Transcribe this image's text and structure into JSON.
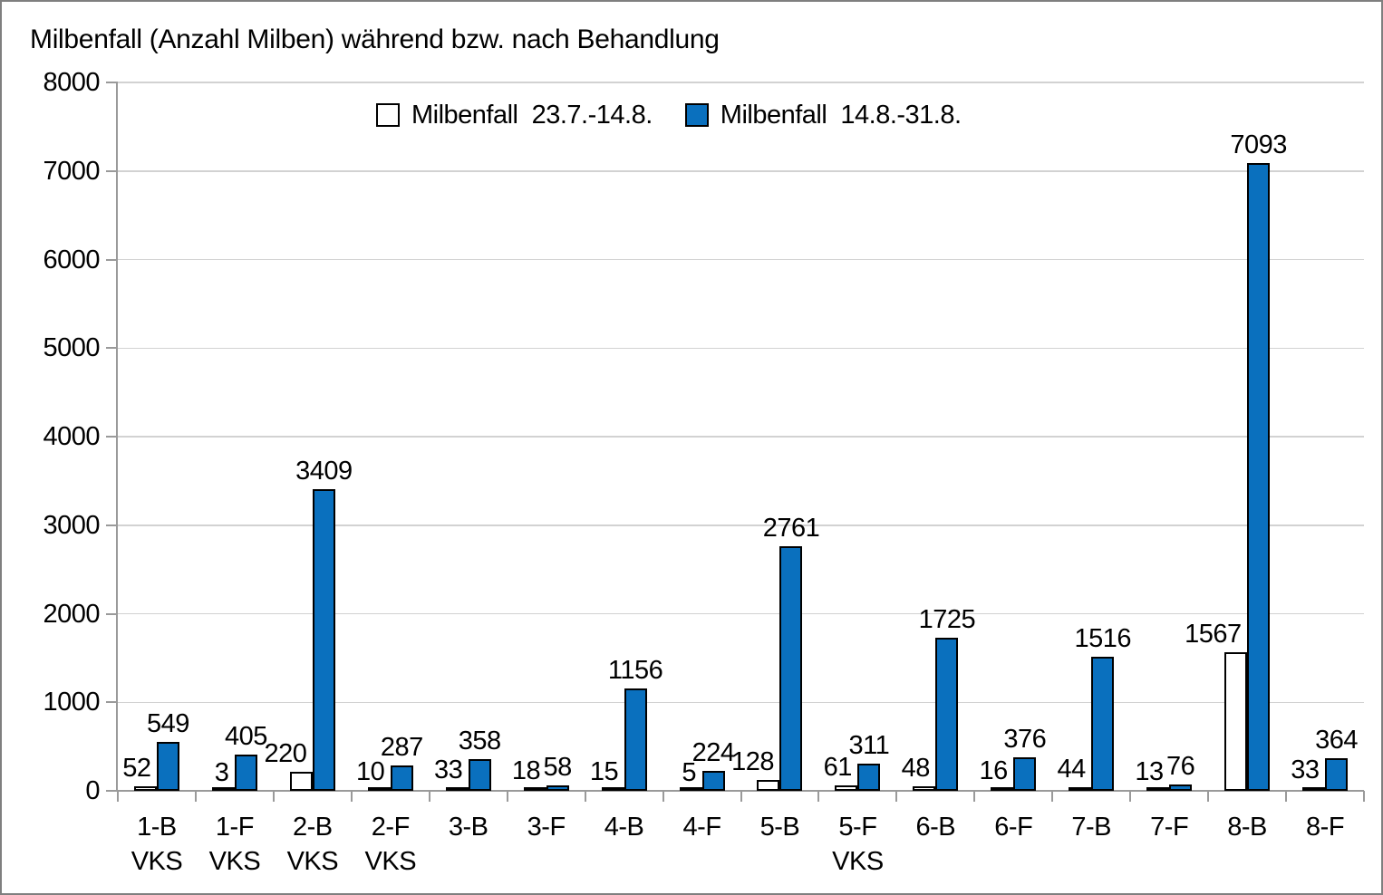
{
  "chart_data": {
    "type": "bar",
    "title": "Milbenfall (Anzahl Milben) während bzw. nach Behandlung",
    "categories": [
      "1-B",
      "1-F",
      "2-B",
      "2-F",
      "3-B",
      "3-F",
      "4-B",
      "4-F",
      "5-B",
      "5-F",
      "6-B",
      "6-F",
      "7-B",
      "7-F",
      "8-B",
      "8-F"
    ],
    "category_sublabels": [
      "VKS",
      "VKS",
      "VKS",
      "VKS",
      "",
      "",
      "",
      "",
      "",
      "VKS",
      "",
      "",
      "",
      "",
      "",
      ""
    ],
    "series": [
      {
        "name": "Milbenfall  23.7.-14.8.",
        "fill": "#FFFFFF",
        "border": "#000000",
        "values": [
          52,
          3,
          220,
          10,
          33,
          18,
          15,
          5,
          128,
          61,
          48,
          16,
          44,
          13,
          1567,
          33
        ]
      },
      {
        "name": "Milbenfall  14.8.-31.8.",
        "fill": "#0A70BE",
        "border": "#000000",
        "values": [
          549,
          405,
          3409,
          287,
          358,
          58,
          1156,
          224,
          2761,
          311,
          1725,
          376,
          1516,
          76,
          7093,
          364
        ]
      }
    ],
    "ylim": [
      0,
      8000
    ],
    "ytick_step": 1000,
    "ytick_labels": [
      "0",
      "1000",
      "2000",
      "3000",
      "4000",
      "5000",
      "6000",
      "7000",
      "8000"
    ],
    "xlabel": "",
    "ylabel": "",
    "grid": true,
    "legend_position": "top-center",
    "data_labels": "outside-end"
  }
}
